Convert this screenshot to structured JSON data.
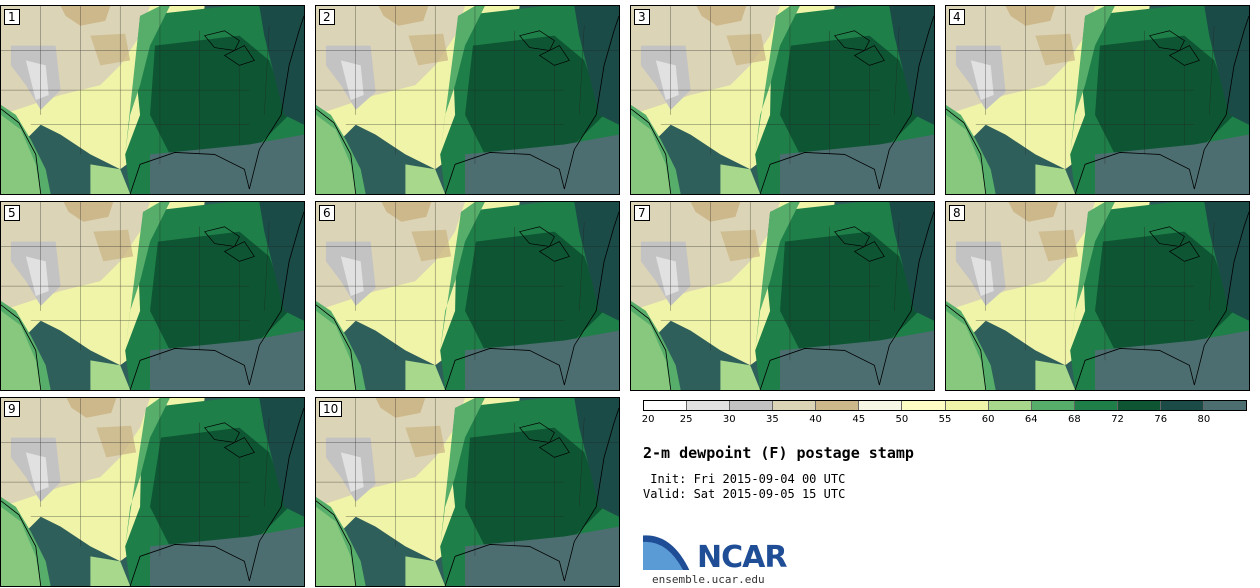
{
  "panels": [
    {
      "label": "1"
    },
    {
      "label": "2"
    },
    {
      "label": "3"
    },
    {
      "label": "4"
    },
    {
      "label": "5"
    },
    {
      "label": "6"
    },
    {
      "label": "7"
    },
    {
      "label": "8"
    },
    {
      "label": "9"
    },
    {
      "label": "10"
    }
  ],
  "colorbar": {
    "ticks": [
      "20",
      "25",
      "30",
      "35",
      "40",
      "45",
      "50",
      "55",
      "60",
      "64",
      "68",
      "72",
      "76",
      "80"
    ],
    "colors": [
      "#ffffff",
      "#e1e1e1",
      "#c3c3c3",
      "#dcd4b6",
      "#ccb88a",
      "#f7f7e6",
      "#fdfdc4",
      "#f0f4a8",
      "#a8d88c",
      "#56ae6a",
      "#1f7f48",
      "#0e5633",
      "#1b4b47",
      "#4d6e70"
    ]
  },
  "title": "2-m dewpoint (F) postage stamp",
  "init": " Init: Fri 2015-09-04 00 UTC",
  "valid": "Valid: Sat 2015-09-05 15 UTC",
  "logo": {
    "name": "NCAR",
    "site": "ensemble.ucar.edu",
    "color": "#1f4e96"
  }
}
